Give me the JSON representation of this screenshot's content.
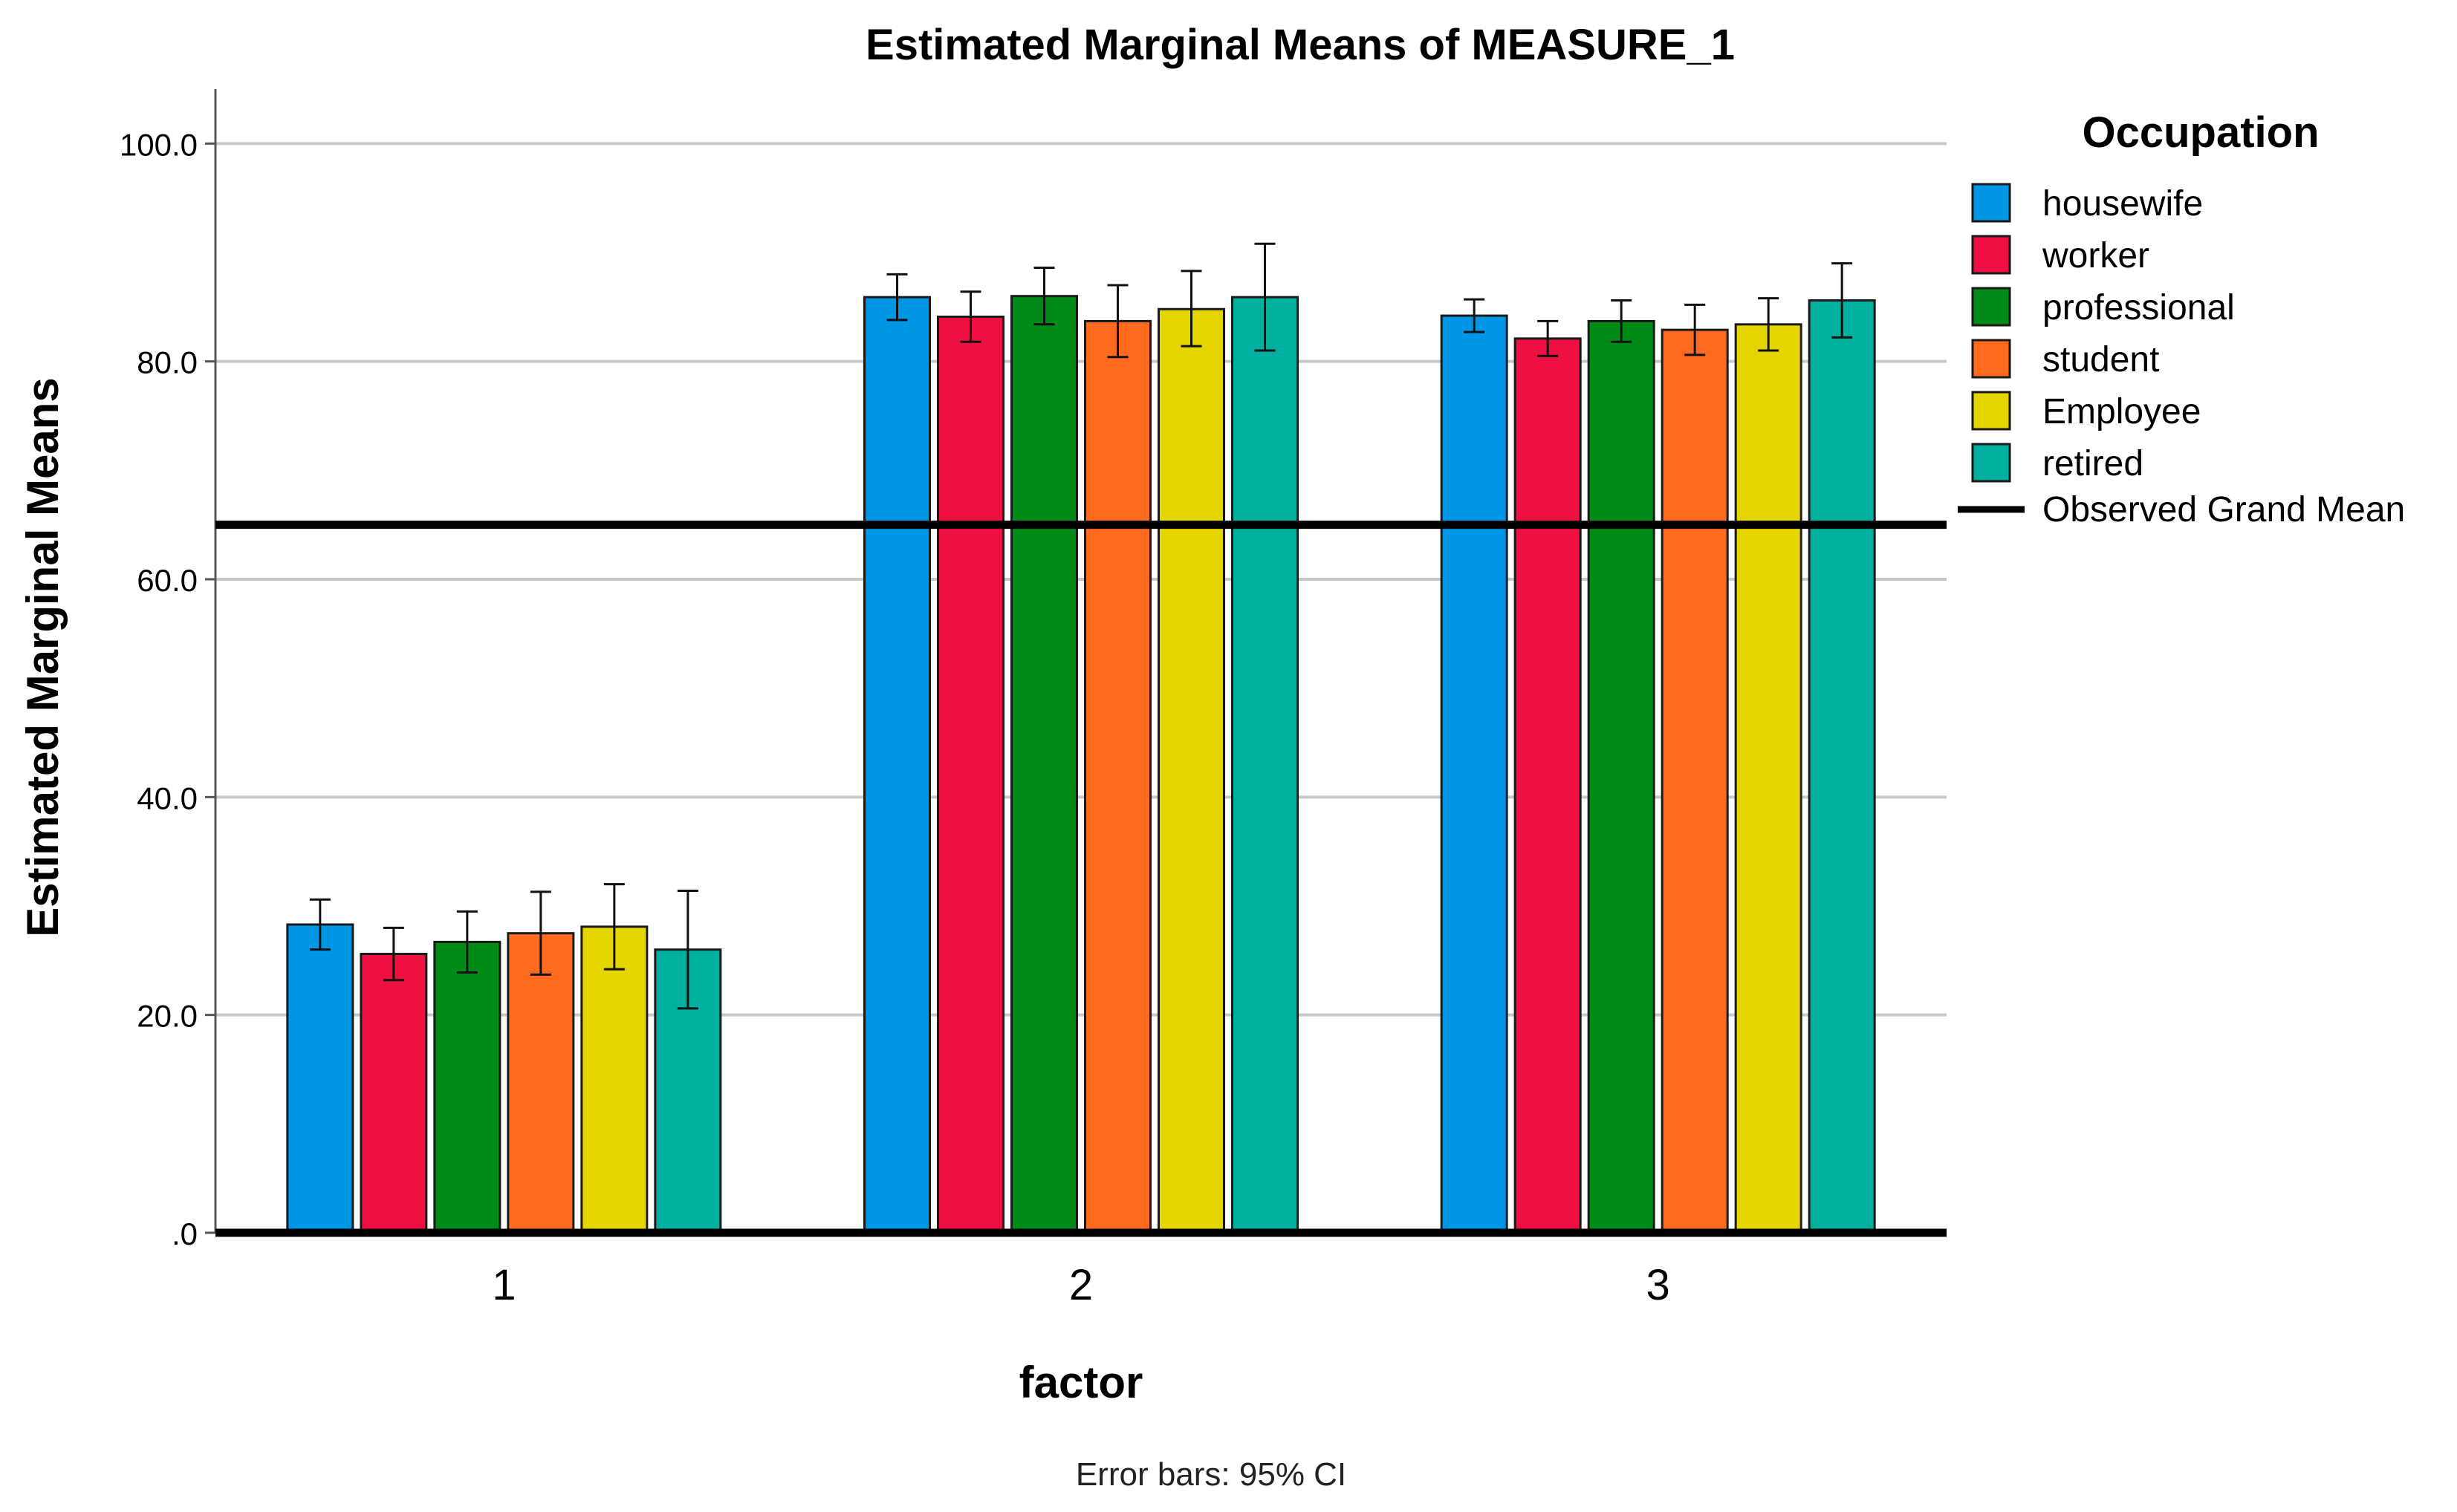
{
  "chart_data": {
    "type": "bar",
    "title": "Estimated Marginal Means of MEASURE_1",
    "xlabel": "factor",
    "ylabel": "Estimated Marginal Means",
    "footnote": "Error bars: 95% CI",
    "categories": [
      "1",
      "2",
      "3"
    ],
    "ylim": [
      0,
      105
    ],
    "yticks": [
      0,
      20,
      40,
      60,
      80,
      100
    ],
    "ytick_labels": [
      ".0",
      "20.0",
      "40.0",
      "60.0",
      "80.0",
      "100.0"
    ],
    "grid": true,
    "legend_title": "Occupation",
    "legend_position": "right",
    "grand_mean": {
      "label": "Observed Grand Mean",
      "value": 65.0
    },
    "series": [
      {
        "name": "housewife",
        "color": "#0096E6",
        "values": [
          28.3,
          85.9,
          84.2
        ],
        "ci_low": [
          26.0,
          83.8,
          82.7
        ],
        "ci_high": [
          30.6,
          88.0,
          85.7
        ]
      },
      {
        "name": "worker",
        "color": "#EE1040",
        "values": [
          25.6,
          84.1,
          82.1
        ],
        "ci_low": [
          23.2,
          81.8,
          80.5
        ],
        "ci_high": [
          28.0,
          86.4,
          83.7
        ]
      },
      {
        "name": "professional",
        "color": "#008A18",
        "values": [
          26.7,
          86.0,
          83.7
        ],
        "ci_low": [
          23.9,
          83.4,
          81.8
        ],
        "ci_high": [
          29.5,
          88.6,
          85.6
        ]
      },
      {
        "name": "student",
        "color": "#FF6A1F",
        "values": [
          27.5,
          83.7,
          82.9
        ],
        "ci_low": [
          23.7,
          80.4,
          80.6
        ],
        "ci_high": [
          31.3,
          87.0,
          85.2
        ]
      },
      {
        "name": "Employee",
        "color": "#E6D600",
        "values": [
          28.1,
          84.8,
          83.4
        ],
        "ci_low": [
          24.2,
          81.4,
          81.0
        ],
        "ci_high": [
          32.0,
          88.3,
          85.8
        ]
      },
      {
        "name": "retired",
        "color": "#00B09E",
        "values": [
          26.0,
          85.9,
          85.6
        ],
        "ci_low": [
          20.6,
          81.0,
          82.2
        ],
        "ci_high": [
          31.4,
          90.8,
          89.0
        ]
      }
    ]
  }
}
